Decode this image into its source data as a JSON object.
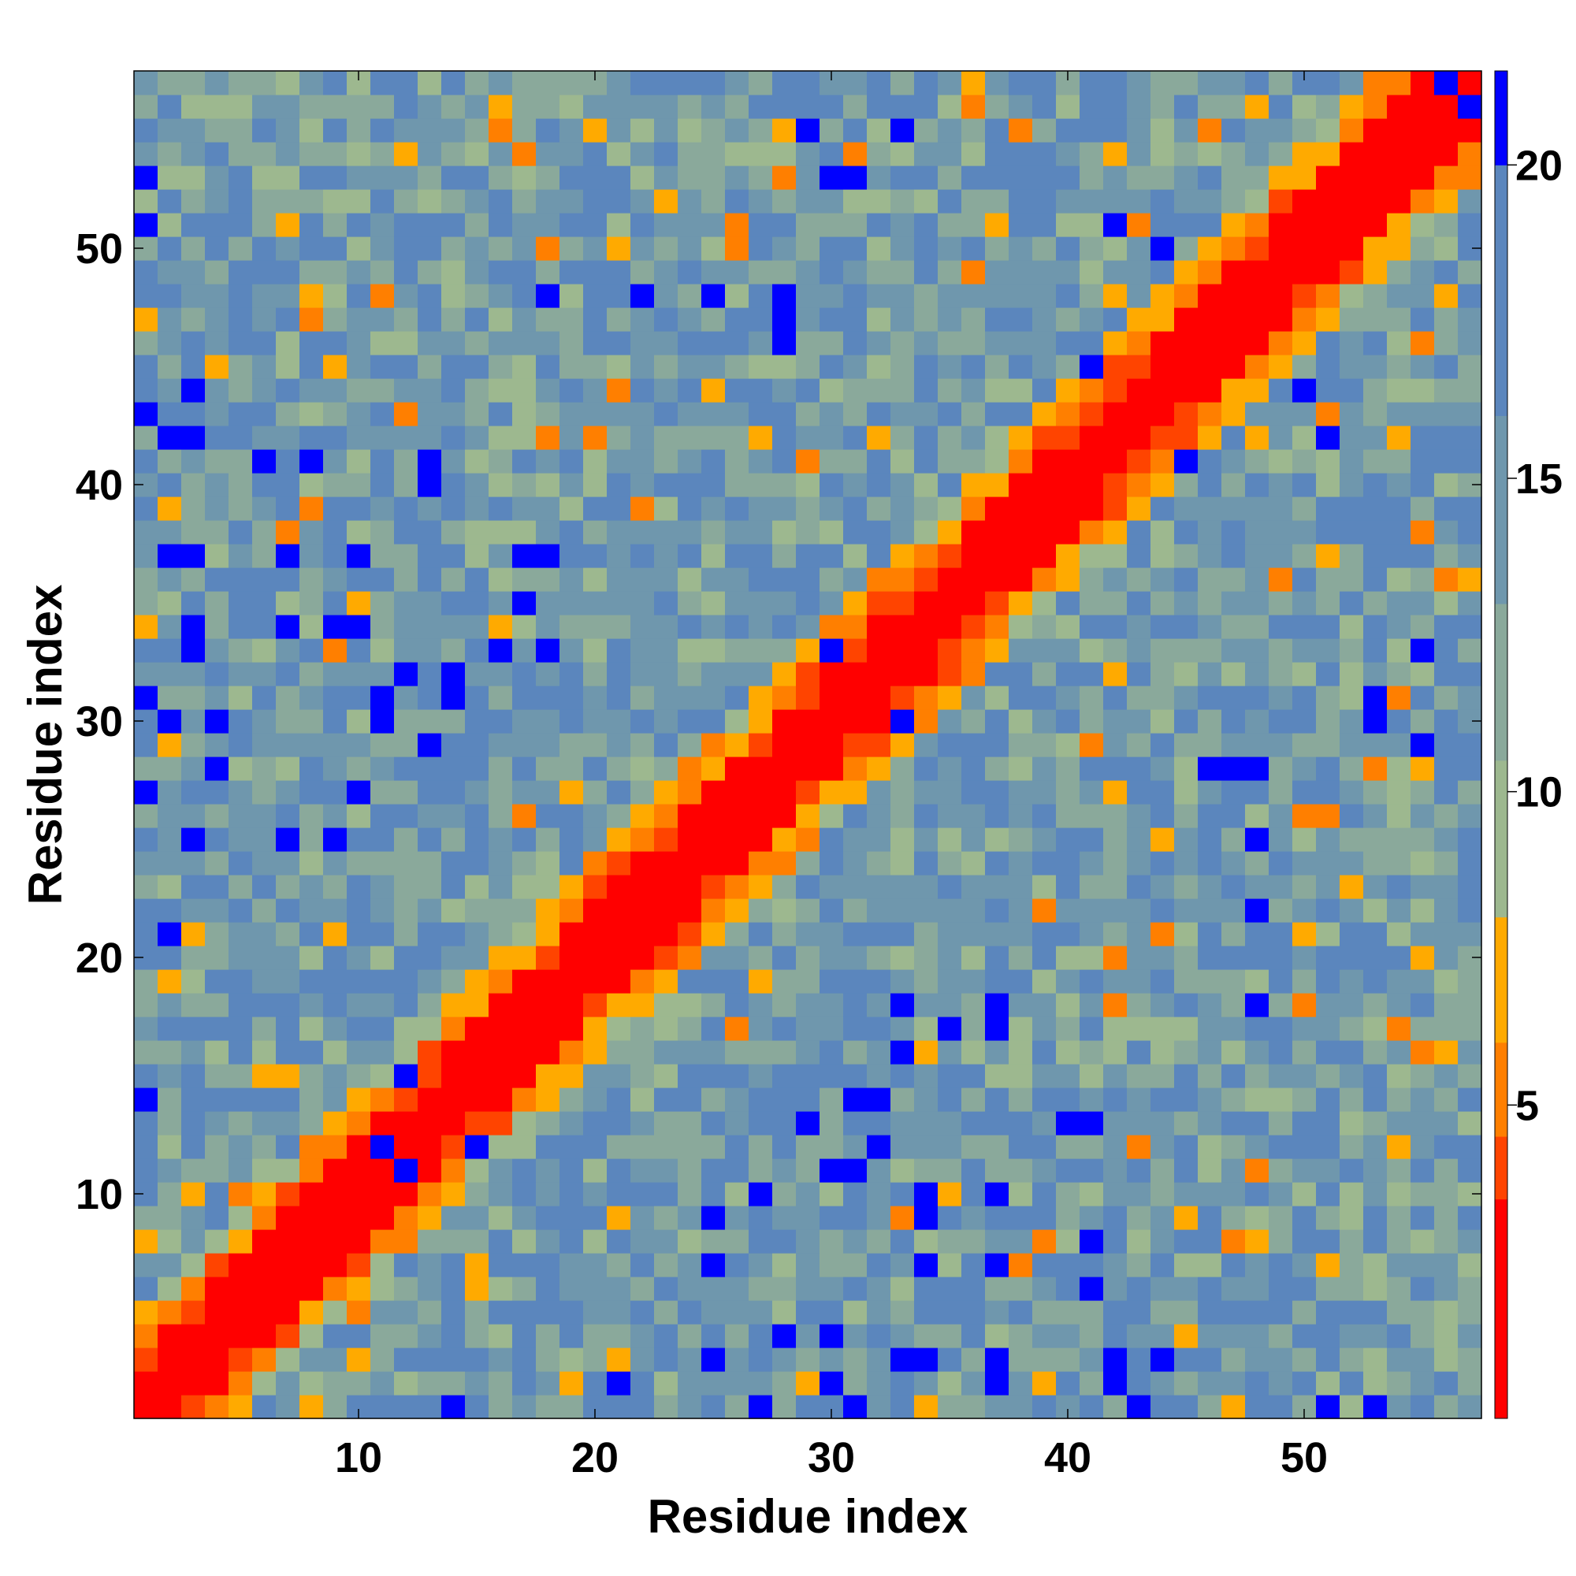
{
  "chart_data": {
    "type": "heatmap",
    "title": "",
    "xlabel": "Residue index",
    "ylabel": "Residue index",
    "n_residues": 57,
    "xlim": [
      0.5,
      57.5
    ],
    "ylim": [
      0.5,
      57.5
    ],
    "x_ticks": [
      10,
      20,
      30,
      40,
      50
    ],
    "y_ticks": [
      10,
      20,
      30,
      40,
      50
    ],
    "grid": false,
    "legend": "none",
    "colorbar": {
      "placement": "right",
      "range": [
        0,
        21.5
      ],
      "ticks": [
        5,
        10,
        15,
        20
      ],
      "palette": [
        "#ff0000",
        "#ff4400",
        "#ff7f00",
        "#ffaa00",
        "#9db88f",
        "#8aa99b",
        "#6f97ad",
        "#5b86bd",
        "#0000ff"
      ],
      "bin_edges": [
        0,
        3.5,
        4.5,
        6.0,
        8.0,
        10.5,
        13.0,
        16.0,
        20.0,
        21.5
      ]
    },
    "matrix_description_note": "Symmetric residue distance map: values near 0 on the diagonal (red), rising with separation; blue cells mark the largest distances (~21)",
    "blue_blocks": [
      [
        1,
        27
      ],
      [
        1,
        31
      ],
      [
        3,
        34
      ],
      [
        7,
        34
      ],
      [
        10,
        34
      ],
      [
        11,
        31
      ],
      [
        14,
        32
      ],
      [
        16,
        33
      ],
      [
        18,
        33
      ],
      [
        3,
        37
      ],
      [
        7,
        37
      ],
      [
        10,
        37
      ],
      [
        1,
        43
      ],
      [
        3,
        42
      ],
      [
        6,
        41
      ],
      [
        13,
        40
      ],
      [
        18,
        48
      ],
      [
        22,
        48
      ],
      [
        25,
        48
      ],
      [
        28,
        48
      ],
      [
        4,
        28
      ],
      [
        3,
        25
      ],
      [
        2,
        21
      ],
      [
        11,
        12
      ],
      [
        12,
        15
      ],
      [
        1,
        14
      ],
      [
        30,
        2
      ],
      [
        30,
        4
      ],
      [
        33,
        3
      ],
      [
        34,
        9
      ],
      [
        30,
        11
      ],
      [
        32,
        12
      ],
      [
        31,
        14
      ],
      [
        35,
        17
      ],
      [
        37,
        17
      ],
      [
        29,
        13
      ],
      [
        25,
        9
      ],
      [
        27,
        10
      ],
      [
        25,
        7
      ],
      [
        41,
        8
      ],
      [
        42,
        2
      ],
      [
        44,
        3
      ],
      [
        47,
        28
      ],
      [
        48,
        25
      ],
      [
        48,
        22
      ],
      [
        46,
        28
      ],
      [
        41,
        13
      ],
      [
        37,
        2
      ],
      [
        51,
        1
      ],
      [
        53,
        1
      ],
      [
        31,
        53
      ],
      [
        33,
        55
      ],
      [
        56,
        57
      ],
      [
        30,
        33
      ],
      [
        53,
        30
      ],
      [
        41,
        45
      ],
      [
        45,
        41
      ],
      [
        44,
        50
      ],
      [
        42,
        51
      ],
      [
        15,
        12
      ],
      [
        18,
        37
      ],
      [
        28,
        46
      ],
      [
        29,
        55
      ]
    ]
  }
}
